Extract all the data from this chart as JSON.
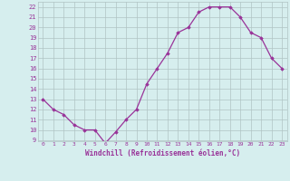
{
  "x": [
    0,
    1,
    2,
    3,
    4,
    5,
    6,
    7,
    8,
    9,
    10,
    11,
    12,
    13,
    14,
    15,
    16,
    17,
    18,
    19,
    20,
    21,
    22,
    23
  ],
  "y": [
    13,
    12,
    11.5,
    10.5,
    10,
    10,
    8.7,
    9.8,
    11,
    12,
    14.5,
    16,
    17.5,
    19.5,
    20,
    21.5,
    22,
    22,
    22,
    21,
    19.5,
    19,
    17,
    16
  ],
  "line_color": "#993399",
  "marker": "D",
  "marker_size": 1.8,
  "bg_color": "#d6eeee",
  "grid_color": "#b0c4c4",
  "xlabel": "Windchill (Refroidissement éolien,°C)",
  "xlabel_color": "#993399",
  "tick_color": "#993399",
  "ylim": [
    8.9,
    22.5
  ],
  "xlim": [
    -0.5,
    23.5
  ],
  "yticks": [
    9,
    10,
    11,
    12,
    13,
    14,
    15,
    16,
    17,
    18,
    19,
    20,
    21,
    22
  ],
  "xticks": [
    0,
    1,
    2,
    3,
    4,
    5,
    6,
    7,
    8,
    9,
    10,
    11,
    12,
    13,
    14,
    15,
    16,
    17,
    18,
    19,
    20,
    21,
    22,
    23
  ]
}
